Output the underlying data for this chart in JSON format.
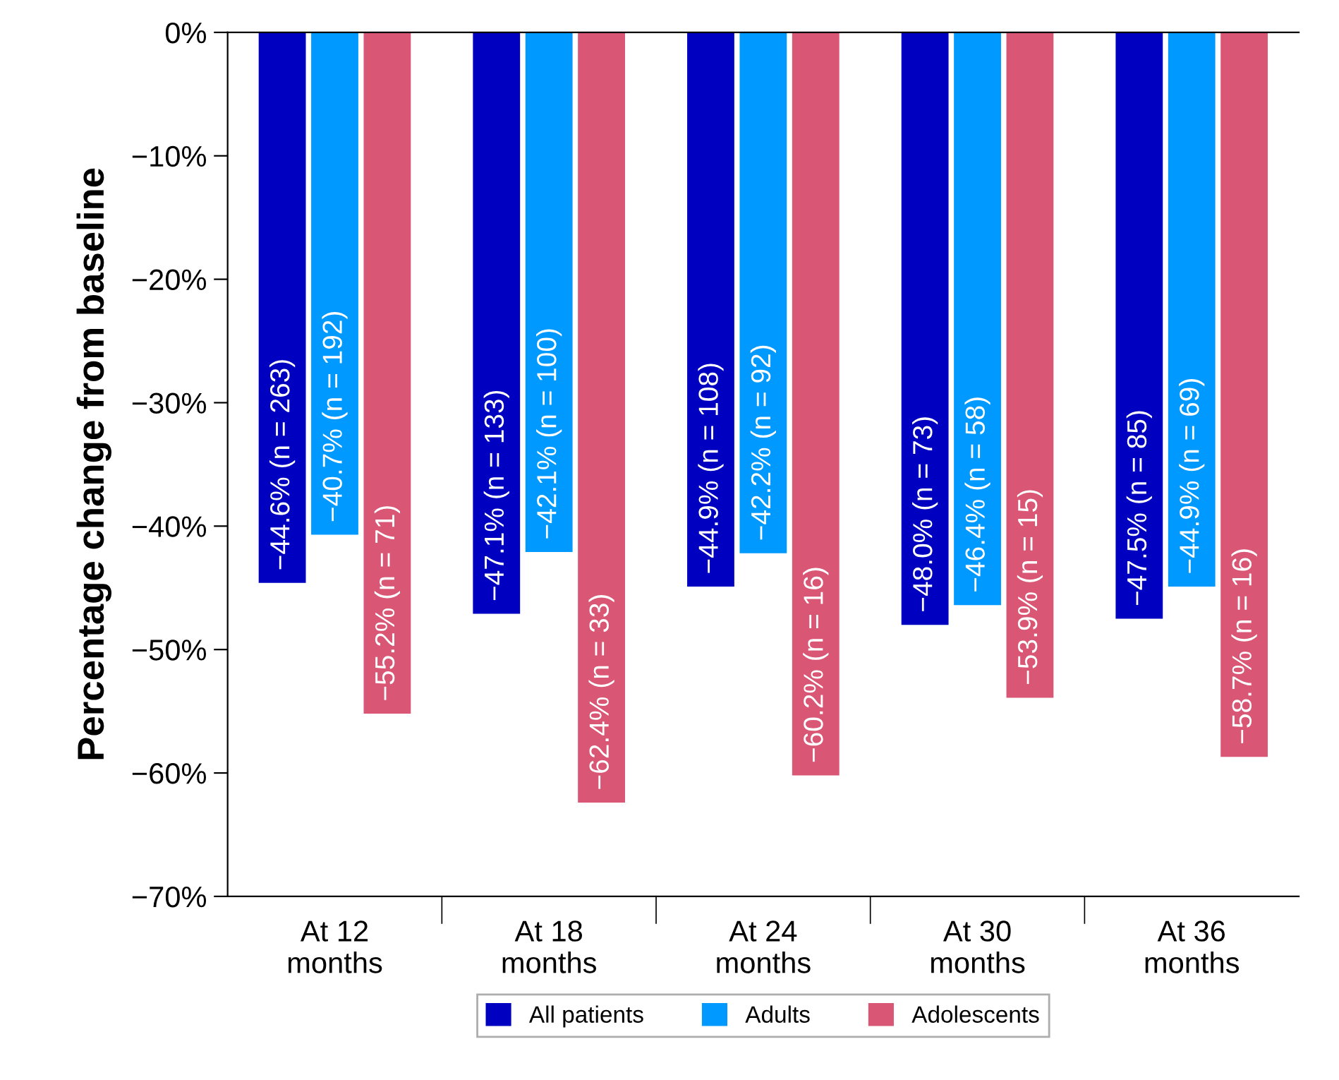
{
  "chart_data": {
    "type": "bar",
    "ylabel": "Percentage change from baseline",
    "categories": [
      "At 12\nmonths",
      "At 18\nmonths",
      "At 24\nmonths",
      "At 30\nmonths",
      "At 36\nmonths"
    ],
    "series": [
      {
        "name": "All patients",
        "color": "#0000c0",
        "values": [
          -44.6,
          -47.1,
          -44.9,
          -48.0,
          -47.5
        ],
        "value_labels": [
          "−44.6% (n = 263)",
          "−47.1% (n = 133)",
          "−44.9% (n = 108)",
          "−48.0% (n = 73)",
          "−47.5% (n = 85)"
        ]
      },
      {
        "name": "Adults",
        "color": "#0099ff",
        "values": [
          -40.7,
          -42.1,
          -42.2,
          -46.4,
          -44.9
        ],
        "value_labels": [
          "−40.7% (n = 192)",
          "−42.1% (n = 100)",
          "−42.2% (n = 92)",
          "−46.4% (n = 58)",
          "−44.9% (n = 69)"
        ]
      },
      {
        "name": "Adolescents",
        "color": "#d95775",
        "values": [
          -55.2,
          -62.4,
          -60.2,
          -53.9,
          -58.7
        ],
        "value_labels": [
          "−55.2% (n = 71)",
          "−62.4% (n = 33)",
          "−60.2% (n = 16)",
          "−53.9% (n = 15)",
          "−58.7% (n = 16)"
        ]
      }
    ],
    "ylim": [
      -70,
      0
    ],
    "yticks": [
      {
        "value": 0,
        "label": "0%"
      },
      {
        "value": -10,
        "label": "−10%"
      },
      {
        "value": -20,
        "label": "−20%"
      },
      {
        "value": -30,
        "label": "−30%"
      },
      {
        "value": -40,
        "label": "−40%"
      },
      {
        "value": -50,
        "label": "−50%"
      },
      {
        "value": -60,
        "label": "−60%"
      },
      {
        "value": -70,
        "label": "−70%"
      }
    ],
    "grid": false,
    "legend": "bottom"
  }
}
